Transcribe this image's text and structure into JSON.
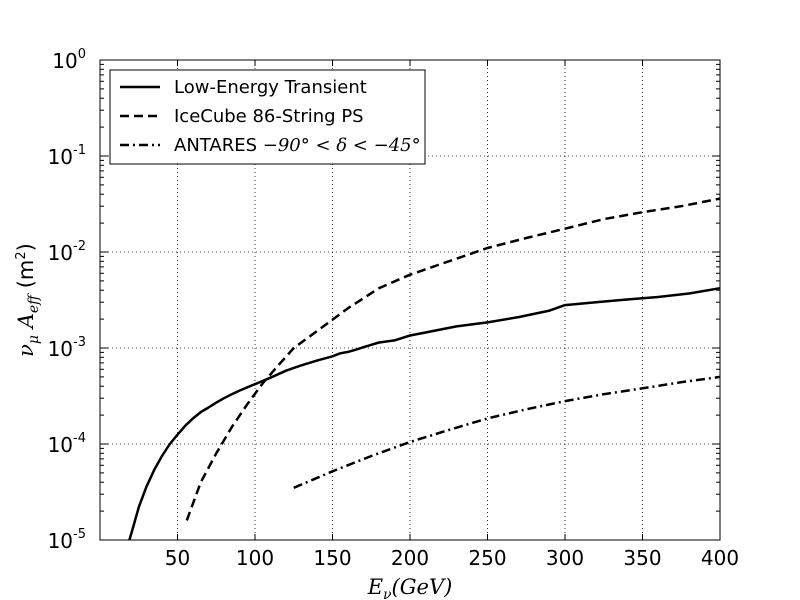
{
  "chart_data": {
    "type": "line",
    "title": "",
    "xlabel": "E_ν(GeV)",
    "ylabel": "ν_μ A_eff (m²)",
    "xlim": [
      0,
      400
    ],
    "ylim": [
      1e-05,
      1
    ],
    "yscale": "log",
    "grid": true,
    "legend_position": "top-left",
    "x_ticks": [
      50,
      100,
      150,
      200,
      250,
      300,
      350,
      400
    ],
    "x_tick_labels": [
      "50",
      "100",
      "150",
      "200",
      "250",
      "300",
      "350",
      "400"
    ],
    "y_ticks": [
      1e-05,
      0.0001,
      0.001,
      0.01,
      0.1,
      1
    ],
    "y_tick_labels": [
      {
        "base": "10",
        "exp": "-5"
      },
      {
        "base": "10",
        "exp": "-4"
      },
      {
        "base": "10",
        "exp": "-3"
      },
      {
        "base": "10",
        "exp": "-2"
      },
      {
        "base": "10",
        "exp": "-1"
      },
      {
        "base": "10",
        "exp": "0"
      }
    ],
    "series": [
      {
        "name": "Low-Energy Transient",
        "style": "solid",
        "color": "#000000",
        "x": [
          19,
          21,
          25,
          30,
          35,
          40,
          45,
          50,
          55,
          60,
          65,
          70,
          75,
          80,
          85,
          90,
          95,
          100,
          110,
          120,
          125,
          130,
          140,
          150,
          155,
          160,
          165,
          170,
          175,
          180,
          190,
          200,
          210,
          230,
          250,
          270,
          290,
          300,
          320,
          340,
          360,
          380,
          400
        ],
        "y": [
          1e-05,
          1.3e-05,
          2.2e-05,
          3.6e-05,
          5.4e-05,
          7.5e-05,
          0.0001,
          0.000125,
          0.000155,
          0.000185,
          0.000215,
          0.00024,
          0.00027,
          0.0003,
          0.00033,
          0.00036,
          0.00039,
          0.00042,
          0.00049,
          0.00058,
          0.00062,
          0.00066,
          0.00074,
          0.00082,
          0.00088,
          0.00091,
          0.00096,
          0.00102,
          0.00108,
          0.00114,
          0.0012,
          0.00135,
          0.00145,
          0.00168,
          0.00185,
          0.0021,
          0.00245,
          0.0028,
          0.003,
          0.0032,
          0.0034,
          0.0037,
          0.0042
        ]
      },
      {
        "name": "IceCube 86-String PS",
        "style": "dashed",
        "color": "#000000",
        "x": [
          56,
          65,
          75,
          85,
          95,
          105,
          115,
          125,
          140,
          160,
          180,
          200,
          225,
          250,
          275,
          300,
          325,
          350,
          375,
          400
        ],
        "y": [
          1.6e-05,
          4e-05,
          8e-05,
          0.00015,
          0.00026,
          0.00043,
          0.00066,
          0.001,
          0.0015,
          0.0026,
          0.0042,
          0.0058,
          0.008,
          0.011,
          0.014,
          0.0175,
          0.022,
          0.026,
          0.03,
          0.036
        ]
      },
      {
        "name": "ANTARES",
        "name_math": "−90° < δ < −45°",
        "style": "dashdot",
        "color": "#000000",
        "x": [
          125,
          150,
          175,
          200,
          225,
          250,
          275,
          300,
          325,
          350,
          375,
          400
        ],
        "y": [
          3.5e-05,
          5.2e-05,
          7.5e-05,
          0.000105,
          0.00014,
          0.000185,
          0.00023,
          0.00028,
          0.00033,
          0.00038,
          0.00044,
          0.0005
        ]
      }
    ]
  }
}
